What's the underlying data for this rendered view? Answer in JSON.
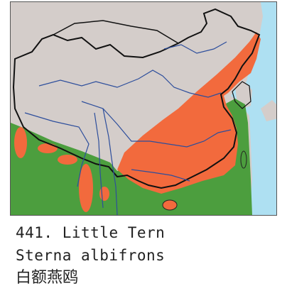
{
  "caption": {
    "number": "441.",
    "common_name": "Little Tern",
    "scientific_name": "Sterna albifrons",
    "chinese_name": "白额燕鸥"
  },
  "map": {
    "legend_colors": {
      "breeding_summer": "#f26a3d",
      "resident_wintering": "#4c9e3e",
      "land_no_record": "#d4cdca",
      "sea": "#aee0f2"
    },
    "ranges": [
      "breeding-range",
      "resident-range"
    ]
  }
}
